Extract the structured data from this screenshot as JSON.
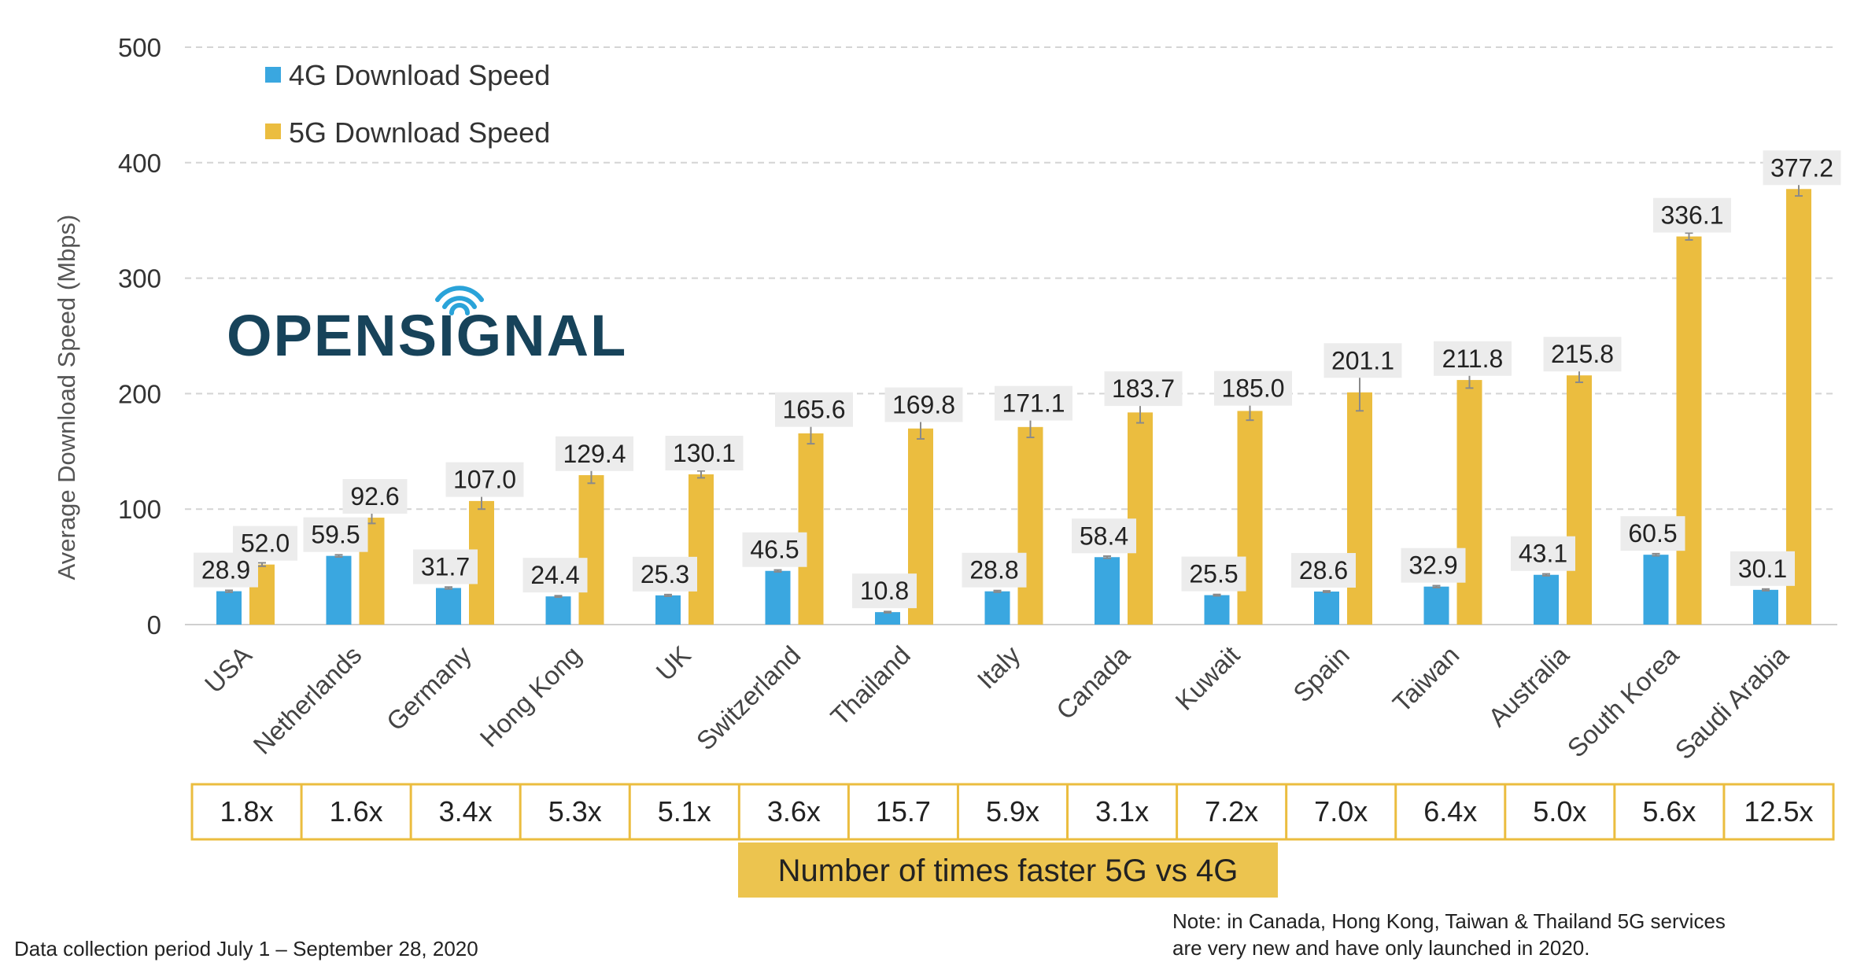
{
  "brand": {
    "logo_text": "OPENSIGNAL"
  },
  "colors": {
    "series_4g": "#3aa7e0",
    "series_5g": "#ebbd3f",
    "ratio_border": "#ebbd3f",
    "caption_bg": "#ecc44f",
    "label_bg": "#ececec",
    "grid": "#d4d4d4",
    "logo": "#17435a",
    "logo_signal": "#2aa3d9"
  },
  "chart_data": {
    "type": "bar",
    "ylabel": "Average Download Speed (Mbps)",
    "ylim": [
      0,
      500
    ],
    "yticks": [
      "0",
      "100",
      "200",
      "300",
      "400",
      "500"
    ],
    "grid": true,
    "legend_position": "top-left",
    "categories": [
      "USA",
      "Netherlands",
      "Germany",
      "Hong Kong",
      "UK",
      "Switzerland",
      "Thailand",
      "Italy",
      "Canada",
      "Kuwait",
      "Spain",
      "Taiwan",
      "Australia",
      "South Korea",
      "Saudi Arabia"
    ],
    "series": [
      {
        "name": "4G Download Speed",
        "values": [
          28.9,
          59.5,
          31.7,
          24.4,
          25.3,
          46.5,
          10.8,
          28.8,
          58.4,
          25.5,
          28.6,
          32.9,
          43.1,
          60.5,
          30.1
        ],
        "labels": [
          "28.9",
          "59.5",
          "31.7",
          "24.4",
          "25.3",
          "46.5",
          "10.8",
          "28.8",
          "58.4",
          "25.5",
          "28.6",
          "32.9",
          "43.1",
          "60.5",
          "30.1"
        ],
        "errors": [
          0.8,
          0.9,
          0.8,
          0.6,
          0.7,
          0.8,
          0.5,
          0.7,
          0.9,
          0.6,
          0.6,
          0.8,
          0.8,
          0.9,
          0.7
        ]
      },
      {
        "name": "5G Download Speed",
        "values": [
          52.0,
          92.6,
          107.0,
          129.4,
          130.1,
          165.6,
          169.8,
          171.1,
          183.7,
          185.0,
          201.1,
          211.8,
          215.8,
          336.1,
          377.2
        ],
        "labels": [
          "52.0",
          "92.6",
          "107.0",
          "129.4",
          "130.1",
          "165.6",
          "169.8",
          "171.1",
          "183.7",
          "185.0",
          "201.1",
          "211.8",
          "215.8",
          "336.1",
          "377.2"
        ],
        "errors": [
          1.5,
          5,
          7,
          7,
          3,
          9,
          9,
          9,
          9,
          8,
          16,
          7,
          6,
          3,
          6
        ]
      }
    ],
    "ratios": [
      "1.8x",
      "1.6x",
      "3.4x",
      "5.3x",
      "5.1x",
      "3.6x",
      "15.7",
      "5.9x",
      "3.1x",
      "7.2x",
      "7.0x",
      "6.4x",
      "5.0x",
      "5.6x",
      "12.5x"
    ],
    "ratio_caption": "Number of times faster 5G vs 4G"
  },
  "footer": {
    "period": "Data collection period July 1 – September 28, 2020",
    "note_line1": "Note: in Canada, Hong Kong, Taiwan & Thailand 5G services",
    "note_line2": "are very new and have only launched in 2020."
  }
}
